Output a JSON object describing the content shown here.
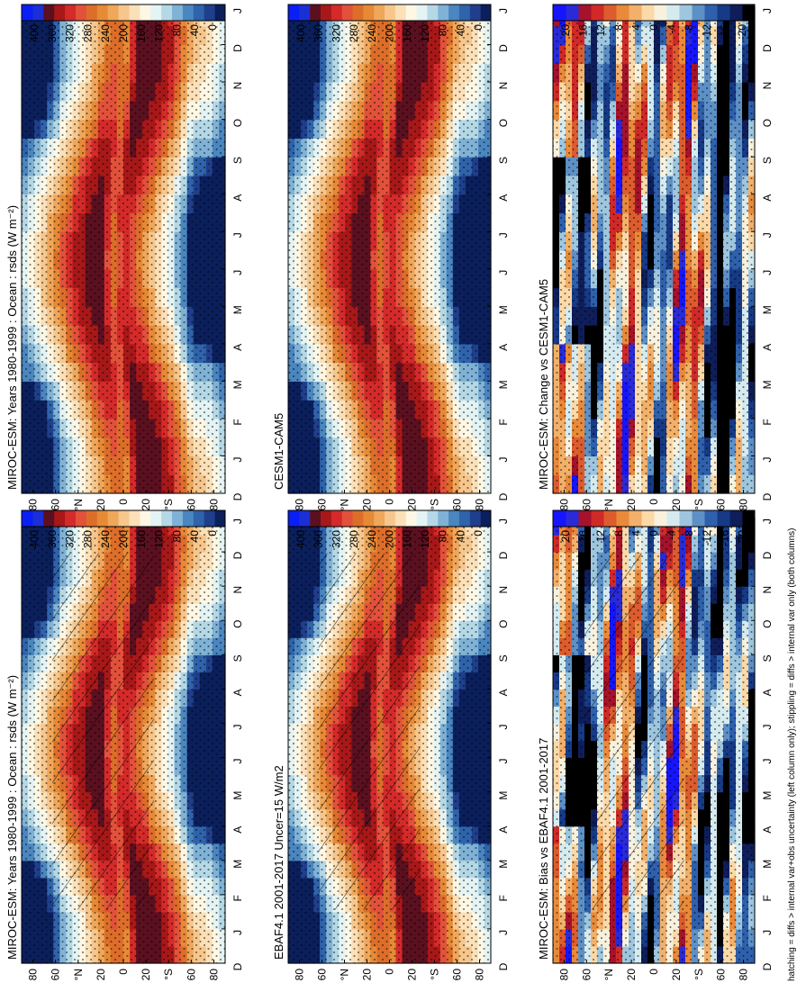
{
  "chart_data": {
    "type": "heatmap",
    "figure_note": "hatching = diffs > internal var+obs uncertainty (left column only); stippling = diffs > internal var only (both columns)",
    "x_month_labels": [
      "D",
      "J",
      "F",
      "M",
      "A",
      "M",
      "J",
      "J",
      "A",
      "S",
      "O",
      "N",
      "D",
      "J"
    ],
    "y_lat_labels": [
      "80",
      "60",
      "°N",
      "20",
      "0",
      "20",
      "°S",
      "60",
      "80"
    ],
    "panels": [
      {
        "id": "p1",
        "title": "MIROC-ESM: Years 1980-1999 : Ocean : rsds (W m⁻²)",
        "field": "abs",
        "hatched": true,
        "colorbar_ticks": [
          "400",
          "360",
          "320",
          "280",
          "240",
          "200",
          "160",
          "120",
          "80",
          "40",
          "0"
        ]
      },
      {
        "id": "p2",
        "title": "MIROC-ESM: Years 1980-1999 : Ocean : rsds (W m⁻²)",
        "field": "abs",
        "hatched": false,
        "colorbar_ticks": [
          "400",
          "360",
          "320",
          "280",
          "240",
          "200",
          "160",
          "120",
          "80",
          "40",
          "0"
        ]
      },
      {
        "id": "p3",
        "title": "EBAF4.1 2001-2017 Uncer=15 W/m2",
        "field": "abs",
        "hatched": true,
        "colorbar_ticks": [
          "400",
          "360",
          "320",
          "280",
          "240",
          "200",
          "160",
          "120",
          "80",
          "40",
          "0"
        ]
      },
      {
        "id": "p4",
        "title": "CESM1-CAM5",
        "field": "abs",
        "hatched": false,
        "colorbar_ticks": [
          "400",
          "360",
          "320",
          "280",
          "240",
          "200",
          "160",
          "120",
          "80",
          "40",
          "0"
        ]
      },
      {
        "id": "p5",
        "title": "MIROC-ESM: Bias vs EBAF4.1 2001-2017",
        "field": "diff",
        "hatched": true,
        "colorbar_ticks": [
          "20",
          "16",
          "12",
          "8",
          "4",
          "0",
          "-4",
          "-8",
          "-12",
          "-16",
          "-20"
        ]
      },
      {
        "id": "p6",
        "title": "MIROC-ESM: Change vs CESM1-CAM5",
        "field": "diff",
        "hatched": false,
        "colorbar_ticks": [
          "20",
          "16",
          "12",
          "8",
          "4",
          "0",
          "-4",
          "-8",
          "-12",
          "-16",
          "-20"
        ]
      }
    ]
  },
  "palettes": {
    "abs": [
      "#0b1f5c",
      "#1f3f8c",
      "#2f63ab",
      "#4a86c0",
      "#7fb2d6",
      "#b4d8e6",
      "#e4f3f3",
      "#fdf7e4",
      "#fbe0b8",
      "#f6c68c",
      "#efa75c",
      "#e68a36",
      "#dc6e2a",
      "#e2513a",
      "#d42a2a",
      "#a81818",
      "#5b1020",
      "#1a2fd6",
      "#0a1ff5"
    ],
    "diff": [
      "#000000",
      "#0f1e5a",
      "#173a86",
      "#2e60ac",
      "#5d90c6",
      "#9ec6df",
      "#d6ebf0",
      "#f7f1dd",
      "#fbd9a8",
      "#f2b06a",
      "#e98a3a",
      "#dd5c2e",
      "#d02a28",
      "#a5122b",
      "#2a2ad8",
      "#1515ff"
    ]
  }
}
